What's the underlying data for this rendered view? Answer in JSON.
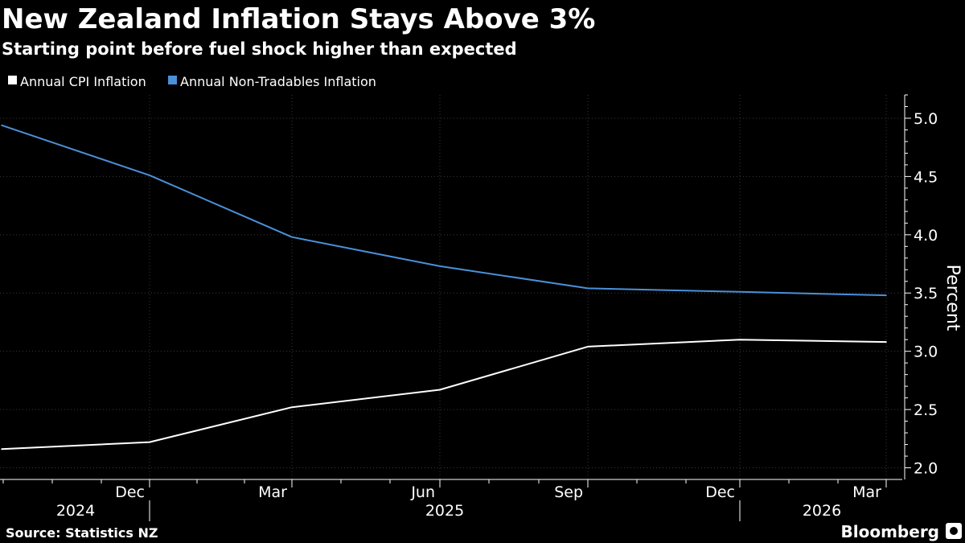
{
  "colors": {
    "background": "#000000",
    "cpi_series": "#ffffff",
    "non_tradables_series": "#4a90d9",
    "gridline": "#3a3a3a",
    "text": "#ffffff"
  },
  "chart_data": {
    "type": "line",
    "title": "New Zealand Inflation Stays Above 3%",
    "subtitle": "Starting point before fuel shock higher than expected",
    "xlabel": "",
    "ylabel": "Percent",
    "ylim": [
      1.9,
      5.2
    ],
    "yticks": [
      "2.0",
      "2.5",
      "3.0",
      "3.5",
      "4.0",
      "4.5",
      "5.0"
    ],
    "x": [
      "2024 Q3",
      "2024 Q4",
      "2025 Q1",
      "2025 Q2",
      "2025 Q3",
      "2025 Q4",
      "2026 Q1"
    ],
    "x_tick_labels": [
      "Dec",
      "Mar",
      "Jun",
      "Sep",
      "Dec",
      "Mar"
    ],
    "year_labels": [
      "2024",
      "2025",
      "2026"
    ],
    "grid": true,
    "legend_position": "top-left",
    "series": [
      {
        "name": "Annual CPI Inflation",
        "color_key": "cpi_series",
        "values": [
          2.16,
          2.22,
          2.52,
          2.67,
          3.04,
          3.1,
          3.08
        ]
      },
      {
        "name": "Annual Non-Tradables Inflation",
        "color_key": "non_tradables_series",
        "values": [
          4.94,
          4.51,
          3.98,
          3.73,
          3.54,
          3.51,
          3.48
        ]
      }
    ]
  },
  "footer": {
    "source": "Source: Statistics NZ",
    "brand": "Bloomberg"
  }
}
